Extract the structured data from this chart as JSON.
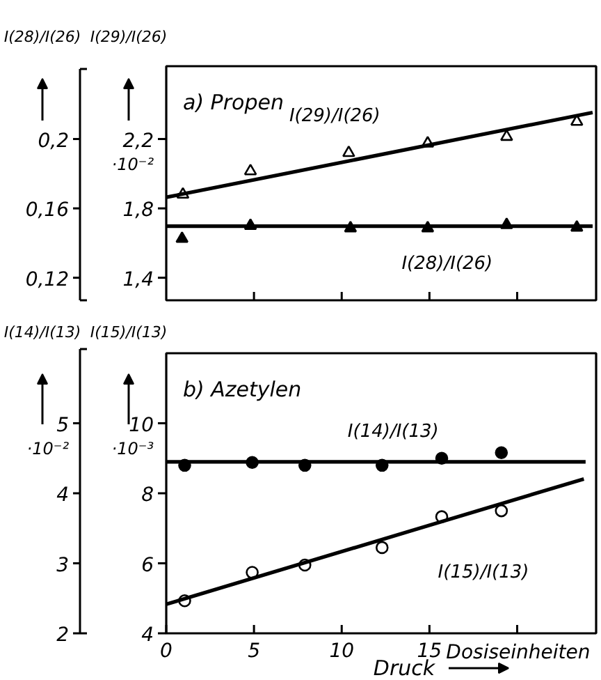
{
  "chart_data": [
    {
      "type": "scatter",
      "title": "a) Propen",
      "ylabel": "I(29)/I(26)",
      "y2label": "I(28)/I(26)",
      "annotations": [
        "·10⁻²"
      ],
      "tick_labels": "y",
      "xlim": [
        0,
        24.5
      ],
      "xticks": [
        {
          "value": 5,
          "label": null
        },
        {
          "value": 10,
          "label": null
        },
        {
          "value": 15,
          "label": null
        },
        {
          "value": 20,
          "label": null
        }
      ],
      "ylim": [
        1.27,
        2.62
      ],
      "yticks": [
        {
          "value": 1.4,
          "label": "1,4"
        },
        {
          "value": 1.8,
          "label": "1,8"
        },
        {
          "value": 2.2,
          "label": "2,2"
        }
      ],
      "y2lim": [
        0.107,
        0.242
      ],
      "y2ticks": [
        {
          "value": 0.12,
          "label": "0,12"
        },
        {
          "value": 0.16,
          "label": "0,16"
        },
        {
          "value": 0.2,
          "label": "0,2"
        }
      ],
      "series": [
        {
          "name": "I(29)/I(26)",
          "color": "#000000",
          "marker": "triangle",
          "x": [
            0.95,
            4.8,
            10.4,
            14.9,
            19.4,
            23.4
          ],
          "values": [
            1.88,
            2.015,
            2.12,
            2.175,
            2.213,
            2.3
          ]
        },
        {
          "type": "line",
          "color": "#000000",
          "x": [
            0,
            24.3
          ],
          "values": [
            1.864,
            2.353
          ]
        },
        {
          "name": "I(28)/I(26)",
          "color": "#000000",
          "marker": "triangle",
          "axis": "y2",
          "x": [
            0.9,
            4.8,
            10.5,
            14.9,
            19.4,
            23.4
          ],
          "values": [
            0.1425,
            0.15,
            0.1486,
            0.1486,
            0.1505,
            0.149
          ]
        },
        {
          "type": "line",
          "color": "#000000",
          "axis": "y2",
          "x": [
            0,
            24.3
          ],
          "values": [
            0.1497,
            0.1497
          ]
        }
      ]
    },
    {
      "type": "scatter",
      "title": "b) Azetylen",
      "xlabel": "Druck",
      "ylabel": "I(15)/I(13)",
      "y2label": "I(14)/I(13)",
      "annotations": [
        "·10⁻³",
        "·10⁻²",
        "Dosiseinheiten"
      ],
      "xlim": [
        0,
        24.5
      ],
      "xticks": [
        0,
        5,
        10,
        15,
        {
          "value": 20,
          "label": null
        }
      ],
      "ylim": [
        4,
        12
      ],
      "yticks": [
        4,
        6,
        8,
        10
      ],
      "y2lim": [
        2,
        6
      ],
      "y2ticks": [
        2,
        3,
        4,
        5
      ],
      "series": [
        {
          "name": "I(14)/I(13)",
          "color": "#000000",
          "marker": "circle",
          "axis": "y2",
          "x": [
            1.05,
            4.9,
            7.9,
            12.3,
            15.7,
            19.1
          ],
          "values": [
            4.4,
            4.44,
            4.4,
            4.4,
            4.5,
            4.58
          ]
        },
        {
          "type": "line",
          "color": "#000000",
          "axis": "y2",
          "x": [
            0,
            23.9
          ],
          "values": [
            4.45,
            4.45
          ]
        },
        {
          "name": "I(15)/I(13)",
          "color": "#000000",
          "marker": "circle",
          "x": [
            1.05,
            4.9,
            7.9,
            12.3,
            15.7,
            19.1
          ],
          "values": [
            4.93,
            5.74,
            5.95,
            6.45,
            7.33,
            7.5
          ]
        },
        {
          "type": "line",
          "color": "#000000",
          "x": [
            0,
            23.8
          ],
          "values": [
            4.83,
            8.41
          ]
        }
      ]
    }
  ]
}
